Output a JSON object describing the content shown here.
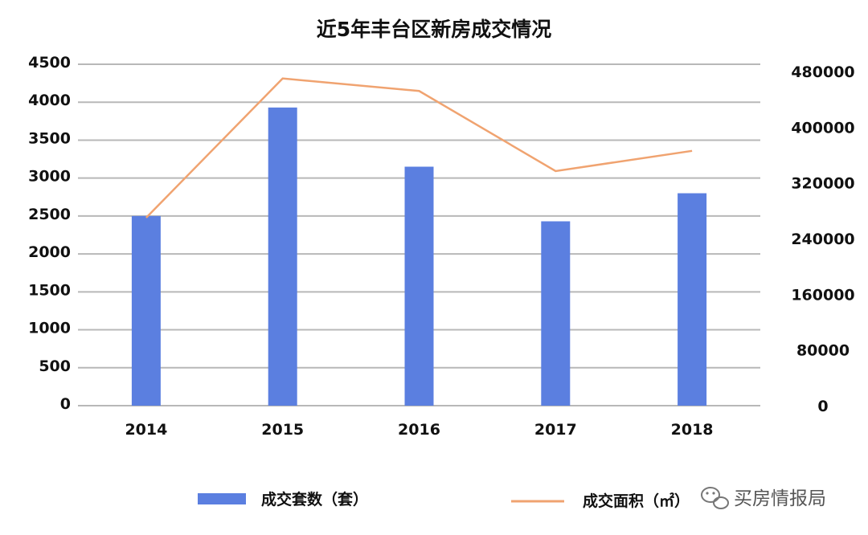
{
  "chart_data": {
    "type": "bar",
    "title": "近5年丰台区新房成交情况",
    "categories": [
      "2014",
      "2015",
      "2016",
      "2017",
      "2018"
    ],
    "series": [
      {
        "name": "成交套数（套）",
        "type": "bar",
        "axis": "left",
        "color": "#5b7fe0",
        "values": [
          2500,
          3930,
          3150,
          2430,
          2800
        ]
      },
      {
        "name": "成交面积（㎡）",
        "type": "line",
        "axis": "right",
        "color": "#f0a370",
        "values": [
          270000,
          470000,
          452000,
          337000,
          366000
        ]
      }
    ],
    "y_left": {
      "min": 0,
      "max": 4500,
      "ticks": [
        "0",
        "500",
        "1000",
        "1500",
        "2000",
        "2500",
        "3000",
        "3500",
        "4000",
        "4500"
      ]
    },
    "y_right": {
      "min": 0,
      "max": 480000,
      "ticks": [
        "0",
        "80000",
        "160000",
        "240000",
        "320000",
        "400000",
        "480000"
      ]
    },
    "grid": true,
    "legend_position": "bottom"
  },
  "watermark": {
    "text": "买房情报局",
    "icon": "wechat-icon"
  }
}
